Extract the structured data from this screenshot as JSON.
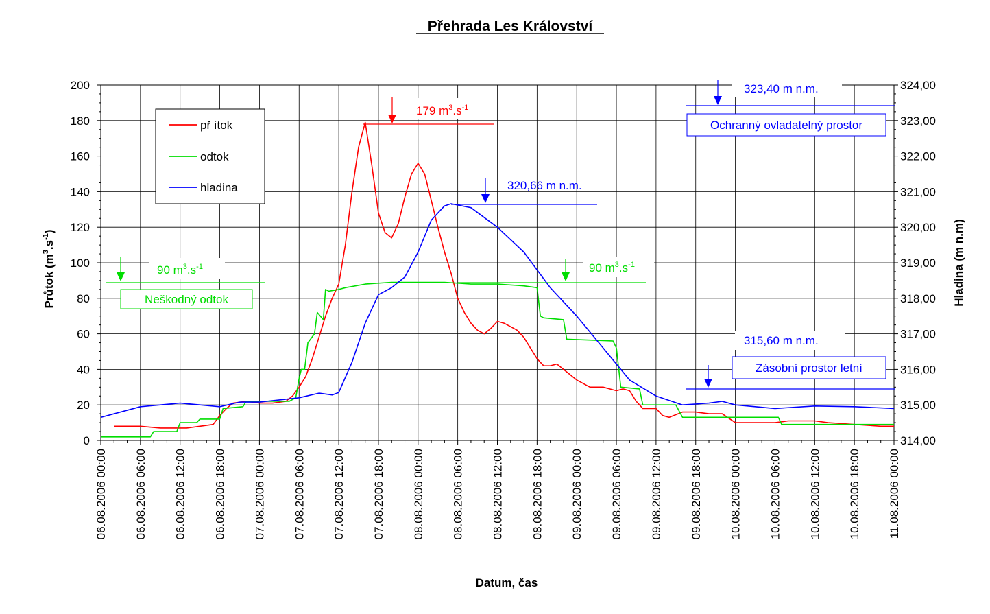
{
  "colors": {
    "pritok": "#ff0000",
    "odtok": "#00dd00",
    "hladina": "#0000ff",
    "grid": "#000000",
    "text": "#000000"
  },
  "chart_data": {
    "type": "line",
    "title": "Přehrada Les Království",
    "xlabel": "Datum, čas",
    "ylabel": "Průtok (m³.s⁻¹)",
    "ylabel_parts": {
      "a": "Průtok (m",
      "sup1": "3",
      "b": ".s",
      "sup2": "-1",
      "c": ")"
    },
    "y2label": "Hladina (m n.m)",
    "xlim": [
      "06.08.2006 00:00",
      "11.08.2006 00:00"
    ],
    "x_tick_labels": [
      "06.08.2006 00:00",
      "06.08.2006 06:00",
      "06.08.2006 12:00",
      "06.08.2006 18:00",
      "07.08.2006 00:00",
      "07.08.2006 06:00",
      "07.08.2006 12:00",
      "07.08.2006 18:00",
      "08.08.2006 00:00",
      "08.08.2006 06:00",
      "08.08.2006 12:00",
      "08.08.2006 18:00",
      "09.08.2006 00:00",
      "09.08.2006 06:00",
      "09.08.2006 12:00",
      "09.08.2006 18:00",
      "10.08.2006 00:00",
      "10.08.2006 06:00",
      "10.08.2006 12:00",
      "10.08.2006 18:00",
      "11.08.2006 00:00"
    ],
    "ylim": [
      0,
      200
    ],
    "y_tick_labels": [
      "0",
      "20",
      "40",
      "60",
      "80",
      "100",
      "120",
      "140",
      "160",
      "180",
      "200"
    ],
    "y2lim": [
      314,
      324
    ],
    "y2_tick_labels": [
      "314,00",
      "315,00",
      "316,00",
      "317,00",
      "318,00",
      "319,00",
      "320,00",
      "321,00",
      "322,00",
      "323,00",
      "324,00"
    ],
    "grid": true,
    "legend_position": "top-left",
    "series": [
      {
        "name": "přítok",
        "legend_label": "př ítok",
        "axis": "left",
        "points": [
          [
            "06.08.2006 02:00",
            8
          ],
          [
            "06.08.2006 06:00",
            8
          ],
          [
            "06.08.2006 09:00",
            7
          ],
          [
            "06.08.2006 13:00",
            7
          ],
          [
            "06.08.2006 15:00",
            8
          ],
          [
            "06.08.2006 17:00",
            9
          ],
          [
            "06.08.2006 18:00",
            14
          ],
          [
            "06.08.2006 19:00",
            18
          ],
          [
            "06.08.2006 20:00",
            21
          ],
          [
            "06.08.2006 22:00",
            22
          ],
          [
            "07.08.2006 00:00",
            21
          ],
          [
            "07.08.2006 02:00",
            21
          ],
          [
            "07.08.2006 04:00",
            22
          ],
          [
            "07.08.2006 05:00",
            25
          ],
          [
            "07.08.2006 06:00",
            30
          ],
          [
            "07.08.2006 07:00",
            36
          ],
          [
            "07.08.2006 08:00",
            46
          ],
          [
            "07.08.2006 09:00",
            58
          ],
          [
            "07.08.2006 10:00",
            70
          ],
          [
            "07.08.2006 11:00",
            80
          ],
          [
            "07.08.2006 12:00",
            88
          ],
          [
            "07.08.2006 13:00",
            110
          ],
          [
            "07.08.2006 14:00",
            140
          ],
          [
            "07.08.2006 15:00",
            165
          ],
          [
            "07.08.2006 16:00",
            179
          ],
          [
            "07.08.2006 17:00",
            155
          ],
          [
            "07.08.2006 18:00",
            128
          ],
          [
            "07.08.2006 19:00",
            117
          ],
          [
            "07.08.2006 20:00",
            114
          ],
          [
            "07.08.2006 21:00",
            122
          ],
          [
            "07.08.2006 22:00",
            137
          ],
          [
            "07.08.2006 23:00",
            150
          ],
          [
            "08.08.2006 00:00",
            156
          ],
          [
            "08.08.2006 01:00",
            150
          ],
          [
            "08.08.2006 02:00",
            135
          ],
          [
            "08.08.2006 03:00",
            120
          ],
          [
            "08.08.2006 04:00",
            106
          ],
          [
            "08.08.2006 05:00",
            94
          ],
          [
            "08.08.2006 06:00",
            80
          ],
          [
            "08.08.2006 07:00",
            72
          ],
          [
            "08.08.2006 08:00",
            66
          ],
          [
            "08.08.2006 09:00",
            62
          ],
          [
            "08.08.2006 10:00",
            60
          ],
          [
            "08.08.2006 11:00",
            63
          ],
          [
            "08.08.2006 12:00",
            67
          ],
          [
            "08.08.2006 13:00",
            66
          ],
          [
            "08.08.2006 14:00",
            64
          ],
          [
            "08.08.2006 15:00",
            62
          ],
          [
            "08.08.2006 16:00",
            58
          ],
          [
            "08.08.2006 17:00",
            52
          ],
          [
            "08.08.2006 18:00",
            46
          ],
          [
            "08.08.2006 19:00",
            42
          ],
          [
            "08.08.2006 20:00",
            42
          ],
          [
            "08.08.2006 21:00",
            43
          ],
          [
            "08.08.2006 22:00",
            40
          ],
          [
            "09.08.2006 00:00",
            34
          ],
          [
            "09.08.2006 02:00",
            30
          ],
          [
            "09.08.2006 04:00",
            30
          ],
          [
            "09.08.2006 06:00",
            28
          ],
          [
            "09.08.2006 07:00",
            29
          ],
          [
            "09.08.2006 08:00",
            28
          ],
          [
            "09.08.2006 09:00",
            22
          ],
          [
            "09.08.2006 10:00",
            18
          ],
          [
            "09.08.2006 12:00",
            18
          ],
          [
            "09.08.2006 13:00",
            14
          ],
          [
            "09.08.2006 14:00",
            13
          ],
          [
            "09.08.2006 16:00",
            16
          ],
          [
            "09.08.2006 18:00",
            16
          ],
          [
            "09.08.2006 20:00",
            15
          ],
          [
            "09.08.2006 22:00",
            15
          ],
          [
            "10.08.2006 00:00",
            10
          ],
          [
            "10.08.2006 06:00",
            10
          ],
          [
            "10.08.2006 08:00",
            11
          ],
          [
            "10.08.2006 12:00",
            11
          ],
          [
            "10.08.2006 14:00",
            10
          ],
          [
            "10.08.2006 18:00",
            9
          ],
          [
            "10.08.2006 22:00",
            8
          ],
          [
            "11.08.2006 00:00",
            8
          ]
        ]
      },
      {
        "name": "odtok",
        "legend_label": "odtok",
        "axis": "left",
        "points": [
          [
            "06.08.2006 00:00",
            2
          ],
          [
            "06.08.2006 07:30",
            2
          ],
          [
            "06.08.2006 08:00",
            5
          ],
          [
            "06.08.2006 11:30",
            5
          ],
          [
            "06.08.2006 12:00",
            10
          ],
          [
            "06.08.2006 14:30",
            10
          ],
          [
            "06.08.2006 15:00",
            12
          ],
          [
            "06.08.2006 18:00",
            12
          ],
          [
            "06.08.2006 18:30",
            18
          ],
          [
            "06.08.2006 21:30",
            19
          ],
          [
            "06.08.2006 22:00",
            22
          ],
          [
            "07.08.2006 04:30",
            22
          ],
          [
            "07.08.2006 05:30",
            24
          ],
          [
            "07.08.2006 06:00",
            35
          ],
          [
            "07.08.2006 06:20",
            40
          ],
          [
            "07.08.2006 06:50",
            40
          ],
          [
            "07.08.2006 07:20",
            55
          ],
          [
            "07.08.2006 08:20",
            60
          ],
          [
            "07.08.2006 08:45",
            72
          ],
          [
            "07.08.2006 09:40",
            68
          ],
          [
            "07.08.2006 10:00",
            85
          ],
          [
            "07.08.2006 10:30",
            84
          ],
          [
            "07.08.2006 12:00",
            85
          ],
          [
            "07.08.2006 13:00",
            86
          ],
          [
            "07.08.2006 16:00",
            88
          ],
          [
            "07.08.2006 20:00",
            89
          ],
          [
            "08.08.2006 00:00",
            89
          ],
          [
            "08.08.2006 04:00",
            89
          ],
          [
            "08.08.2006 08:00",
            88
          ],
          [
            "08.08.2006 12:00",
            88
          ],
          [
            "08.08.2006 16:00",
            87
          ],
          [
            "08.08.2006 18:00",
            86
          ],
          [
            "08.08.2006 18:30",
            70
          ],
          [
            "08.08.2006 19:00",
            69
          ],
          [
            "08.08.2006 22:00",
            68
          ],
          [
            "08.08.2006 22:30",
            57
          ],
          [
            "09.08.2006 05:30",
            56
          ],
          [
            "09.08.2006 06:00",
            52
          ],
          [
            "09.08.2006 06:40",
            30
          ],
          [
            "09.08.2006 09:30",
            29
          ],
          [
            "09.08.2006 10:00",
            20
          ],
          [
            "09.08.2006 15:00",
            20
          ],
          [
            "09.08.2006 16:00",
            13
          ],
          [
            "10.08.2006 06:30",
            13
          ],
          [
            "10.08.2006 07:00",
            9
          ],
          [
            "11.08.2006 00:00",
            9
          ]
        ]
      },
      {
        "name": "hladina",
        "legend_label": "hladina",
        "axis": "right",
        "points": [
          [
            "06.08.2006 00:00",
            314.65
          ],
          [
            "06.08.2006 06:00",
            314.95
          ],
          [
            "06.08.2006 12:00",
            315.05
          ],
          [
            "06.08.2006 18:00",
            314.95
          ],
          [
            "06.08.2006 21:00",
            315.08
          ],
          [
            "07.08.2006 00:00",
            315.08
          ],
          [
            "07.08.2006 06:00",
            315.2
          ],
          [
            "07.08.2006 09:00",
            315.33
          ],
          [
            "07.08.2006 11:00",
            315.28
          ],
          [
            "07.08.2006 12:00",
            315.35
          ],
          [
            "07.08.2006 14:00",
            316.2
          ],
          [
            "07.08.2006 16:00",
            317.3
          ],
          [
            "07.08.2006 18:00",
            318.1
          ],
          [
            "07.08.2006 20:00",
            318.3
          ],
          [
            "07.08.2006 22:00",
            318.6
          ],
          [
            "08.08.2006 00:00",
            319.3
          ],
          [
            "08.08.2006 02:00",
            320.2
          ],
          [
            "08.08.2006 04:00",
            320.6
          ],
          [
            "08.08.2006 05:00",
            320.66
          ],
          [
            "08.08.2006 08:00",
            320.55
          ],
          [
            "08.08.2006 12:00",
            320.0
          ],
          [
            "08.08.2006 16:00",
            319.3
          ],
          [
            "08.08.2006 20:00",
            318.3
          ],
          [
            "09.08.2006 00:00",
            317.5
          ],
          [
            "09.08.2006 04:00",
            316.6
          ],
          [
            "09.08.2006 08:00",
            315.7
          ],
          [
            "09.08.2006 12:00",
            315.25
          ],
          [
            "09.08.2006 16:00",
            315.0
          ],
          [
            "09.08.2006 20:00",
            315.05
          ],
          [
            "09.08.2006 22:00",
            315.1
          ],
          [
            "10.08.2006 00:00",
            315.0
          ],
          [
            "10.08.2006 06:00",
            314.9
          ],
          [
            "10.08.2006 12:00",
            314.97
          ],
          [
            "10.08.2006 18:00",
            314.95
          ],
          [
            "11.08.2006 00:00",
            314.9
          ]
        ]
      }
    ],
    "annotations": {
      "peak_pritok": {
        "label_base": "179 m",
        "sup": "3",
        "mid": ".s",
        "sup2": "-1",
        "value": 179
      },
      "max_hladina": {
        "label": "320,66 m n.m.",
        "value": 320.66
      },
      "neskodny_left": {
        "label_base": "90 m",
        "sup": "3",
        "mid": ".s",
        "sup2": "-1",
        "value": 90,
        "box": "Neškodný odtok"
      },
      "neskodny_right": {
        "label_base": "90 m",
        "sup": "3",
        "mid": ".s",
        "sup2": "-1",
        "value": 90
      },
      "ochranny": {
        "label": "323,40 m n.m.",
        "value": 323.4,
        "box": "Ochranný ovladatelný prostor"
      },
      "zasobni": {
        "label": "315,60 m n.m.",
        "value": 315.6,
        "box": "Zásobní prostor letní"
      }
    }
  }
}
